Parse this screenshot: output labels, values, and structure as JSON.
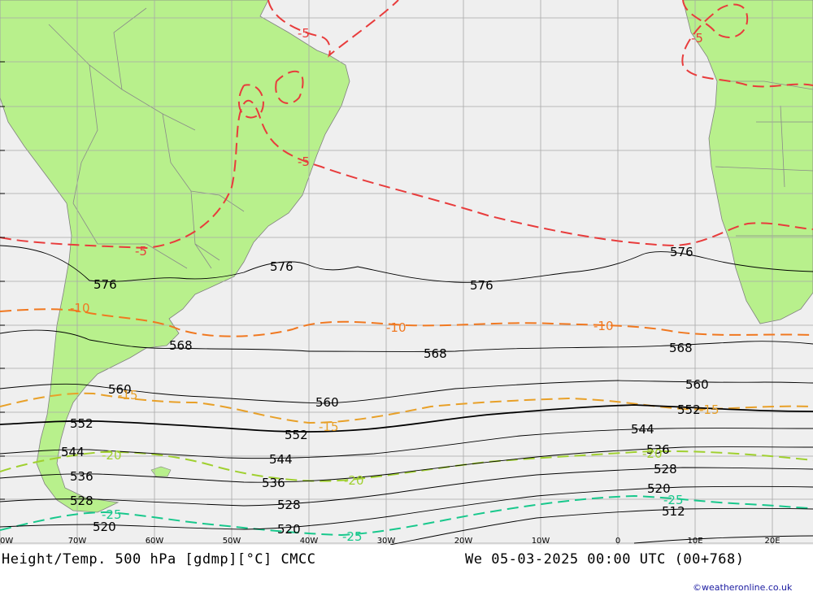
{
  "caption": {
    "left": "Height/Temp. 500 hPa [gdmp][°C] CMCC",
    "right": "We 05-03-2025 00:00 UTC (00+768)"
  },
  "credit": "©weatheronline.co.uk",
  "longitude_labels": [
    "0W",
    "70W",
    "60W",
    "50W",
    "40W",
    "30W",
    "20W",
    "10W",
    "0",
    "10E",
    "20E"
  ],
  "colors": {
    "ocean": "#efefef",
    "land": "#b8f08c",
    "grid": "#a8a8a8",
    "border": "#909090",
    "height": "#000000",
    "t_minus5": "#e83c3c",
    "t_minus10": "#f07820",
    "t_minus15": "#e8a028",
    "t_minus20": "#a0d030",
    "t_minus25": "#18c88c"
  },
  "height_labels": [
    {
      "text": "576",
      "role": "west"
    },
    {
      "text": "576",
      "role": "mid-1"
    },
    {
      "text": "576",
      "role": "mid-2"
    },
    {
      "text": "576",
      "role": "east"
    },
    {
      "text": "568",
      "role": "west"
    },
    {
      "text": "568",
      "role": "mid"
    },
    {
      "text": "568",
      "role": "east"
    },
    {
      "text": "560",
      "role": "west"
    },
    {
      "text": "560",
      "role": "mid"
    },
    {
      "text": "560",
      "role": "east"
    },
    {
      "text": "552",
      "role": "west"
    },
    {
      "text": "552",
      "role": "mid"
    },
    {
      "text": "552",
      "role": "east"
    },
    {
      "text": "544",
      "role": "west"
    },
    {
      "text": "544",
      "role": "mid"
    },
    {
      "text": "544",
      "role": "east"
    },
    {
      "text": "536",
      "role": "west"
    },
    {
      "text": "536",
      "role": "mid"
    },
    {
      "text": "536",
      "role": "east"
    },
    {
      "text": "528",
      "role": "west"
    },
    {
      "text": "528",
      "role": "mid"
    },
    {
      "text": "528",
      "role": "east"
    },
    {
      "text": "520",
      "role": "west"
    },
    {
      "text": "520",
      "role": "mid"
    },
    {
      "text": "520",
      "role": "east"
    },
    {
      "text": "512",
      "role": "east"
    }
  ],
  "temperature_labels": [
    {
      "text": "-5",
      "role": "north-brazil"
    },
    {
      "text": "-5",
      "role": "africa"
    },
    {
      "text": "-5",
      "role": "east-brazil"
    },
    {
      "text": "-5",
      "role": "southwest"
    },
    {
      "text": "-10",
      "role": "west"
    },
    {
      "text": "-10",
      "role": "mid"
    },
    {
      "text": "-10",
      "role": "east"
    },
    {
      "text": "-15",
      "role": "west"
    },
    {
      "text": "-15",
      "role": "mid"
    },
    {
      "text": "-15",
      "role": "east"
    },
    {
      "text": "-20",
      "role": "west"
    },
    {
      "text": "-20",
      "role": "mid"
    },
    {
      "text": "-20",
      "role": "east"
    },
    {
      "text": "-25",
      "role": "west"
    },
    {
      "text": "-25",
      "role": "mid"
    },
    {
      "text": "-25",
      "role": "east"
    }
  ]
}
